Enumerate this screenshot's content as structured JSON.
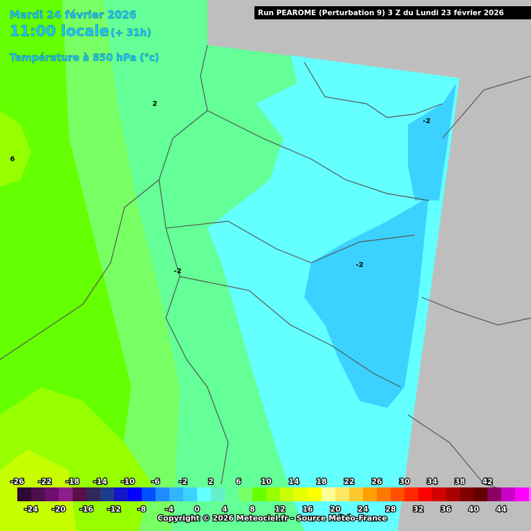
{
  "header": {
    "date": "Mardi 24 février 2026",
    "time": "11:00 locale",
    "lead": "(+ 31h)",
    "parameter": "Température à 850 hPa (°c)",
    "run": "Run PEAROME (Perturbation 9) 3 Z du Lundi 23 février 2026"
  },
  "contour_labels": [
    "2",
    "-2",
    "6",
    "-2",
    "-2"
  ],
  "legend": {
    "labels_top": [
      -26,
      -22,
      -18,
      -14,
      -10,
      -6,
      -2,
      2,
      6,
      10,
      14,
      18,
      22,
      26,
      30,
      34,
      38,
      42
    ],
    "labels_bottom": [
      -24,
      -20,
      -16,
      -12,
      -8,
      -4,
      0,
      4,
      8,
      12,
      16,
      20,
      24,
      28,
      32,
      36,
      40,
      44
    ],
    "colors": [
      "#2d0a32",
      "#4b0f4b",
      "#6e0f6e",
      "#8c1e8c",
      "#5a0f46",
      "#32285a",
      "#1e3c8c",
      "#1414c8",
      "#0000ff",
      "#0050ff",
      "#1e8cff",
      "#32b4ff",
      "#3cd2ff",
      "#64ffff",
      "#64f0c8",
      "#64ff96",
      "#78ff64",
      "#64ff00",
      "#96ff00",
      "#c8ff00",
      "#e6ff00",
      "#ffff00",
      "#ffff96",
      "#ffe664",
      "#ffc832",
      "#ffa000",
      "#ff7800",
      "#ff5000",
      "#ff2800",
      "#ff0000",
      "#d20000",
      "#aa0000",
      "#820000",
      "#640000",
      "#8c0064",
      "#c800c8",
      "#ff00ff",
      "#ff64ff",
      "#ff96ff"
    ]
  },
  "copyright": "Copyright © 2026 Meteociel.fr - Source Météo-France"
}
